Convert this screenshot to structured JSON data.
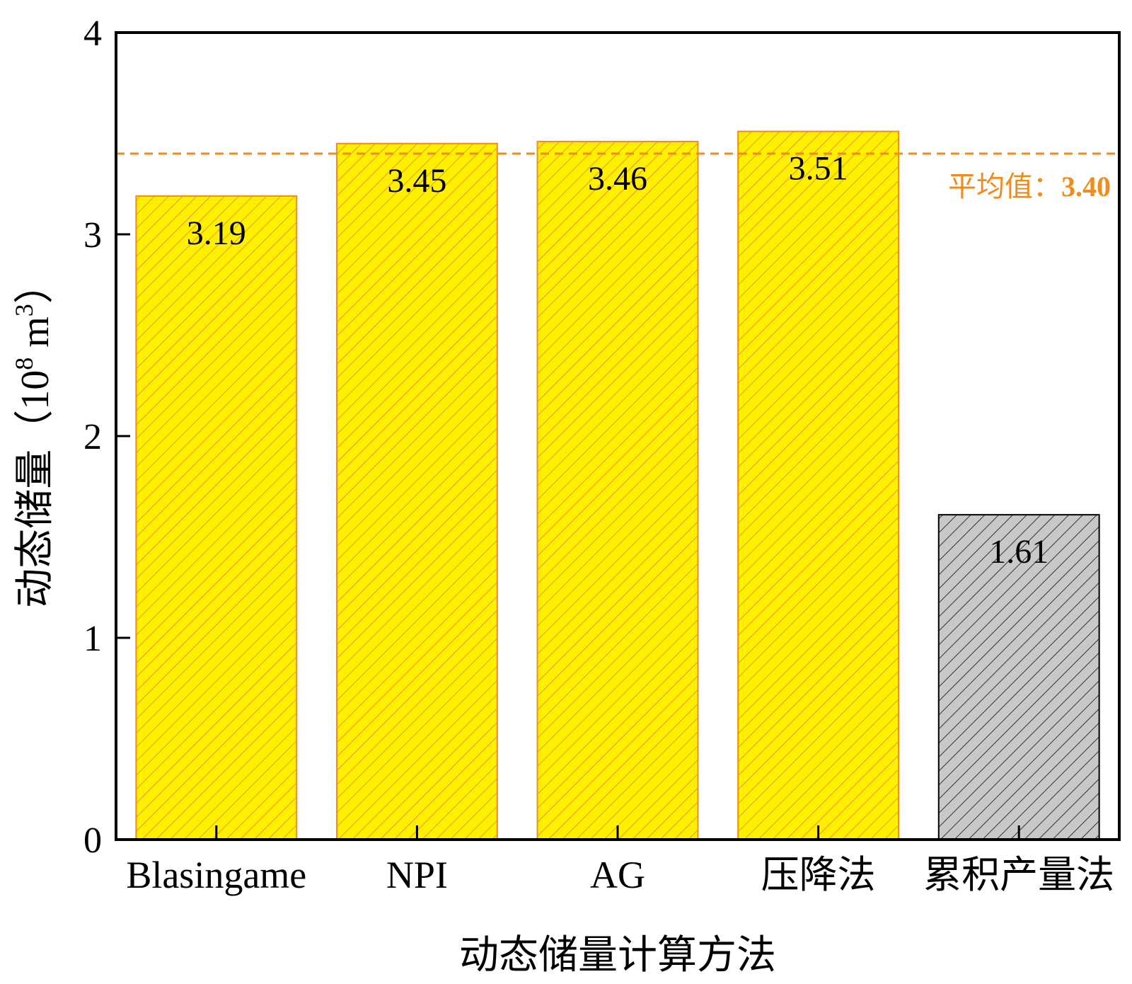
{
  "chart_data": {
    "type": "bar",
    "categories": [
      "Blasingame",
      "NPI",
      "AG",
      "压降法",
      "累积产量法"
    ],
    "values": [
      3.19,
      3.45,
      3.46,
      3.51,
      1.61
    ],
    "value_labels": [
      "3.19",
      "3.45",
      "3.46",
      "3.51",
      "1.61"
    ],
    "title": "",
    "xlabel": "动态储量计算方法",
    "ylabel": "动态储量（10",
    "ylabel_sup": "8",
    "ylabel_unit": " m",
    "ylabel_unit_sup": "3",
    "ylabel_close": "）",
    "ylim": [
      0,
      4
    ],
    "yticks": [
      "0",
      "1",
      "2",
      "3",
      "4"
    ],
    "grid": false,
    "bar_colors": [
      "#FFF000",
      "#FFF000",
      "#FFF000",
      "#FFF000",
      "#C8C8C8"
    ],
    "bar_edge_colors": [
      "#F08C1E",
      "#F08C1E",
      "#F08C1E",
      "#F08C1E",
      "#000000"
    ],
    "hatch_colors": [
      "#E8962A",
      "#E8962A",
      "#E8962A",
      "#E8962A",
      "#333333"
    ],
    "reference_line": {
      "value": 3.4,
      "label_prefix": "平均值：",
      "label_value": "3.40",
      "color": "#F08C1E"
    }
  }
}
